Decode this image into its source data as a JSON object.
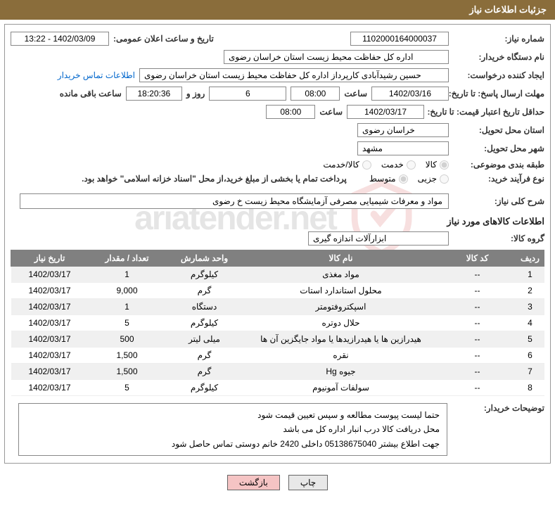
{
  "header": {
    "title": "جزئیات اطلاعات نیاز"
  },
  "form": {
    "needNo": {
      "label": "شماره نیاز:",
      "value": "1102000164000037"
    },
    "announceDate": {
      "label": "تاریخ و ساعت اعلان عمومی:",
      "value": "1402/03/09 - 13:22"
    },
    "buyerOrg": {
      "label": "نام دستگاه خریدار:",
      "value": "اداره کل حفاظت محیط زیست استان خراسان رضوی"
    },
    "requester": {
      "label": "ایجاد کننده درخواست:",
      "value": "حسین رشیدآبادی کارپرداز اداره کل حفاظت محیط زیست استان خراسان رضوی",
      "contactLink": "اطلاعات تماس خریدار"
    },
    "deadline": {
      "label": "مهلت ارسال پاسخ: تا تاریخ:",
      "date": "1402/03/16",
      "timeLabel": "ساعت",
      "time": "08:00",
      "daysVal": "6",
      "daysText": "روز و",
      "remain": "18:20:36",
      "remainText": "ساعت باقی مانده"
    },
    "validity": {
      "label": "حداقل تاریخ اعتبار قیمت: تا تاریخ:",
      "date": "1402/03/17",
      "timeLabel": "ساعت",
      "time": "08:00"
    },
    "province": {
      "label": "استان محل تحویل:",
      "value": "خراسان رضوی"
    },
    "city": {
      "label": "شهر محل تحویل:",
      "value": "مشهد"
    },
    "category": {
      "label": "طبقه بندی موضوعی:",
      "opts": [
        {
          "label": "کالا",
          "checked": true
        },
        {
          "label": "خدمت",
          "checked": false
        },
        {
          "label": "کالا/خدمت",
          "checked": false
        }
      ]
    },
    "purchase": {
      "label": "نوع فرآیند خرید:",
      "opts": [
        {
          "label": "جزیی",
          "checked": false
        },
        {
          "label": "متوسط",
          "checked": true
        }
      ],
      "note": "پرداخت تمام یا بخشی از مبلغ خرید،از محل \"اسناد خزانه اسلامی\" خواهد بود."
    }
  },
  "needDesc": {
    "label": "شرح کلی نیاز:",
    "value": "مواد و معرفات شیمیایی مصرفی آزمایشگاه محیط زیست خ رضوی"
  },
  "itemsTitle": "اطلاعات کالاهای مورد نیاز",
  "group": {
    "label": "گروه کالا:",
    "value": "ابزارآلات اندازه گیری"
  },
  "table": {
    "headers": [
      "ردیف",
      "کد کالا",
      "نام کالا",
      "واحد شمارش",
      "تعداد / مقدار",
      "تاریخ نیاز"
    ],
    "rows": [
      [
        "1",
        "--",
        "مواد مغذی",
        "کیلوگرم",
        "1",
        "1402/03/17"
      ],
      [
        "2",
        "--",
        "محلول استاندارد استات",
        "گرم",
        "9,000",
        "1402/03/17"
      ],
      [
        "3",
        "--",
        "اسپکتروفتومتر",
        "دستگاه",
        "1",
        "1402/03/17"
      ],
      [
        "4",
        "--",
        "حلال دوتره",
        "کیلوگرم",
        "5",
        "1402/03/17"
      ],
      [
        "5",
        "--",
        "هیدرازین ها یا هیدرازیدها یا مواد جایگزین آن ها",
        "میلی لیتر",
        "500",
        "1402/03/17"
      ],
      [
        "6",
        "--",
        "نقره",
        "گرم",
        "1,500",
        "1402/03/17"
      ],
      [
        "7",
        "--",
        "جیوه Hg",
        "گرم",
        "1,500",
        "1402/03/17"
      ],
      [
        "8",
        "--",
        "سولفات آمونیوم",
        "کیلوگرم",
        "5",
        "1402/03/17"
      ]
    ]
  },
  "buyerNotes": {
    "label": "توضیحات خریدار:",
    "lines": [
      "حتما لیست پیوست مطالعه و سپس تعیین قیمت شود",
      "محل دریافت کالا درب انبار اداره کل می باشد",
      "جهت اطلاع بیشتر 05138675040 داخلی 2420 خانم دوستی تماس حاصل شود"
    ]
  },
  "buttons": {
    "print": "چاپ",
    "back": "بازگشت"
  }
}
